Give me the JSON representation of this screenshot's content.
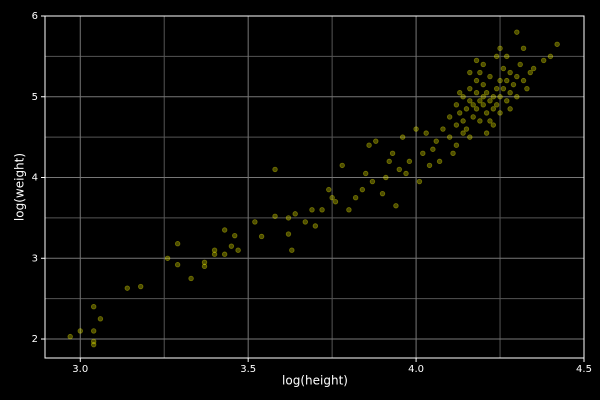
{
  "chart_data": {
    "type": "scatter",
    "x_label": "log(height)",
    "y_label": "log(weight)",
    "color": "#ffff00",
    "background": "#000000",
    "grid": true,
    "xlim": [
      2.895,
      4.5
    ],
    "ylim": [
      1.765,
      6
    ],
    "xticks": [
      {
        "value": 3,
        "label": "3.0"
      },
      {
        "value": 3.5,
        "label": "3.5"
      },
      {
        "value": 4,
        "label": "4.0"
      },
      {
        "value": 4.5,
        "label": "4.5"
      }
    ],
    "yticks": [
      2,
      3,
      4,
      5,
      6
    ],
    "minor_xticks": [
      3.25,
      3.75,
      4.25
    ],
    "minor_yticks": [
      2.5,
      3.5,
      4.5,
      5.5
    ],
    "series": [
      {
        "name": "points",
        "color": "#ffff00",
        "x": [
          2.97,
          3.0,
          3.04,
          3.04,
          3.04,
          3.04,
          3.06,
          3.14,
          3.18,
          3.26,
          3.29,
          3.29,
          3.33,
          3.37,
          3.37,
          3.4,
          3.4,
          3.43,
          3.43,
          3.45,
          3.46,
          3.47,
          3.52,
          3.54,
          3.58,
          3.58,
          3.62,
          3.62,
          3.63,
          3.64,
          3.67,
          3.69,
          3.7,
          3.72,
          3.74,
          3.75,
          3.76,
          3.78,
          3.8,
          3.82,
          3.84,
          3.85,
          3.86,
          3.87,
          3.88,
          3.9,
          3.91,
          3.92,
          3.93,
          3.94,
          3.95,
          3.96,
          3.97,
          3.98,
          4.0,
          4.01,
          4.02,
          4.03,
          4.04,
          4.05,
          4.08,
          4.1,
          4.1,
          4.12,
          4.12,
          4.13,
          4.14,
          4.14,
          4.15,
          4.15,
          4.16,
          4.16,
          4.17,
          4.17,
          4.18,
          4.18,
          4.18,
          4.19,
          4.19,
          4.2,
          4.2,
          4.2,
          4.21,
          4.21,
          4.22,
          4.22,
          4.22,
          4.23,
          4.23,
          4.24,
          4.24,
          4.25,
          4.25,
          4.25,
          4.26,
          4.26,
          4.27,
          4.27,
          4.28,
          4.28,
          4.29,
          4.3,
          4.3,
          4.31,
          4.32,
          4.33,
          4.34,
          4.35,
          4.24,
          4.2,
          4.16,
          4.14,
          4.12,
          4.06,
          4.18,
          4.27,
          4.3,
          4.32,
          4.4,
          4.42,
          4.38,
          4.21,
          4.23,
          4.11,
          4.07,
          4.16,
          4.19,
          4.13,
          4.28,
          4.25
        ],
        "values": [
          2.03,
          2.1,
          2.4,
          2.1,
          1.97,
          1.93,
          2.25,
          2.63,
          2.65,
          3.0,
          3.18,
          2.92,
          2.75,
          2.95,
          2.9,
          3.05,
          3.1,
          3.35,
          3.05,
          3.15,
          3.28,
          3.1,
          3.45,
          3.27,
          4.1,
          3.52,
          3.3,
          3.5,
          3.1,
          3.55,
          3.45,
          3.6,
          3.4,
          3.6,
          3.85,
          3.75,
          3.7,
          4.15,
          3.6,
          3.75,
          3.85,
          4.05,
          4.4,
          3.95,
          4.45,
          3.8,
          4.0,
          4.2,
          4.3,
          3.65,
          4.1,
          4.5,
          4.05,
          4.2,
          4.6,
          3.95,
          4.3,
          4.55,
          4.15,
          4.35,
          4.6,
          4.75,
          4.5,
          4.9,
          4.65,
          4.8,
          5.0,
          4.7,
          4.85,
          4.6,
          5.1,
          4.95,
          4.75,
          4.9,
          5.05,
          4.85,
          5.2,
          4.95,
          4.7,
          5.0,
          4.9,
          5.15,
          4.8,
          5.05,
          4.95,
          5.25,
          4.7,
          5.0,
          4.85,
          5.1,
          4.9,
          5.2,
          5.0,
          4.8,
          5.1,
          5.35,
          4.95,
          5.2,
          5.05,
          5.3,
          5.15,
          5.25,
          5.0,
          5.4,
          5.2,
          5.1,
          5.3,
          5.35,
          5.5,
          5.4,
          5.3,
          4.55,
          4.4,
          4.45,
          5.45,
          5.5,
          5.8,
          5.6,
          5.5,
          5.65,
          5.45,
          4.55,
          4.65,
          4.3,
          4.2,
          4.5,
          5.3,
          5.05,
          4.85,
          5.6
        ]
      }
    ]
  }
}
